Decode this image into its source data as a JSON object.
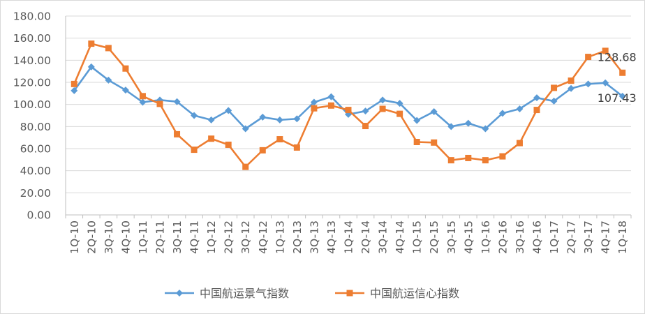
{
  "chart_data": {
    "type": "line",
    "categories": [
      "1Q-10",
      "2Q-10",
      "3Q-10",
      "4Q-10",
      "1Q-11",
      "2Q-11",
      "3Q-11",
      "4Q-11",
      "1Q-12",
      "2Q-12",
      "3Q-12",
      "4Q-12",
      "1Q-13",
      "2Q-13",
      "3Q-13",
      "4Q-13",
      "1Q-14",
      "2Q-14",
      "3Q-14",
      "4Q-14",
      "1Q-15",
      "2Q-15",
      "3Q-15",
      "4Q-15",
      "1Q-16",
      "2Q-16",
      "3Q-16",
      "4Q-16",
      "1Q-17",
      "2Q-17",
      "3Q-17",
      "4Q-17",
      "1Q-18"
    ],
    "series": [
      {
        "name": "中国航运景气指数",
        "color": "#5b9bd5",
        "marker": "diamond",
        "values": [
          112.5,
          134.0,
          122.0,
          113.0,
          102.0,
          104.0,
          102.5,
          90.0,
          86.0,
          94.5,
          78.0,
          88.5,
          86.0,
          87.0,
          102.0,
          107.0,
          91.0,
          94.0,
          104.0,
          101.0,
          85.5,
          93.5,
          80.0,
          83.0,
          78.0,
          92.0,
          96.0,
          106.0,
          103.0,
          114.5,
          118.5,
          119.5,
          107.43
        ]
      },
      {
        "name": "中国航运信心指数",
        "color": "#ed7d31",
        "marker": "square",
        "values": [
          118.5,
          155.0,
          151.0,
          132.5,
          107.5,
          100.5,
          73.0,
          59.0,
          69.0,
          63.5,
          43.5,
          58.5,
          68.5,
          61.0,
          96.5,
          99.0,
          95.0,
          80.5,
          96.0,
          91.5,
          66.0,
          65.5,
          49.5,
          51.5,
          49.5,
          53.0,
          65.0,
          95.0,
          115.0,
          121.5,
          143.0,
          148.5,
          128.68
        ]
      }
    ],
    "data_labels": [
      "128.68",
      "107.43"
    ],
    "y_tick_labels": [
      "0.00",
      "20.00",
      "40.00",
      "60.00",
      "80.00",
      "100.00",
      "120.00",
      "140.00",
      "160.00",
      "180.00"
    ],
    "ylim": [
      0,
      180
    ],
    "ystep": 20,
    "grid": true,
    "legend_position": "bottom"
  }
}
